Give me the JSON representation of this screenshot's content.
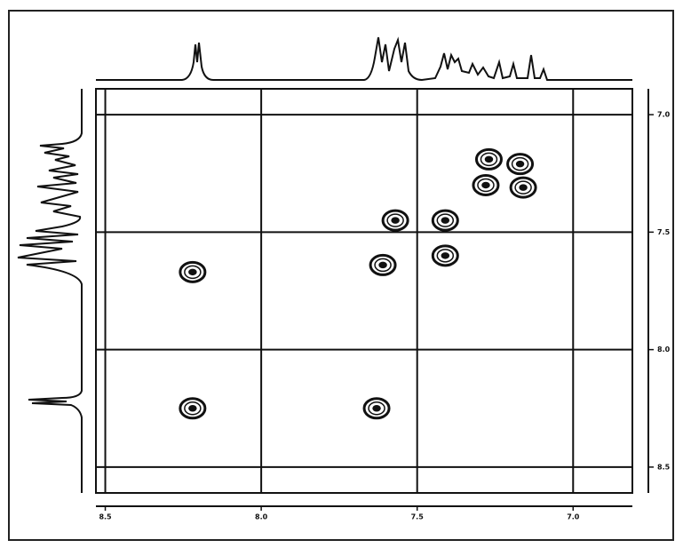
{
  "chart_data": {
    "type": "contour",
    "xlim": [
      8.53,
      6.81
    ],
    "xticks": [
      {
        "value": 8.5,
        "label": "8.5"
      },
      {
        "value": 8.0,
        "label": "8.0"
      },
      {
        "value": 7.5,
        "label": "7.5"
      },
      {
        "value": 7.0,
        "label": "7.0"
      }
    ],
    "ylim": [
      6.89,
      8.61
    ],
    "yticks": [
      {
        "value": 7.0,
        "label": "7.0"
      },
      {
        "value": 7.5,
        "label": "7.5"
      },
      {
        "value": 8.0,
        "label": "8.0"
      },
      {
        "value": 8.5,
        "label": "8.5"
      }
    ],
    "grid": true,
    "color": "#111111",
    "x": [
      8.22,
      8.22,
      7.63,
      7.57,
      7.61,
      7.41,
      7.41,
      7.27,
      7.17,
      7.16,
      7.28
    ],
    "y": [
      7.67,
      8.25,
      8.25,
      7.45,
      7.64,
      7.6,
      7.45,
      7.19,
      7.21,
      7.31,
      7.3
    ]
  }
}
